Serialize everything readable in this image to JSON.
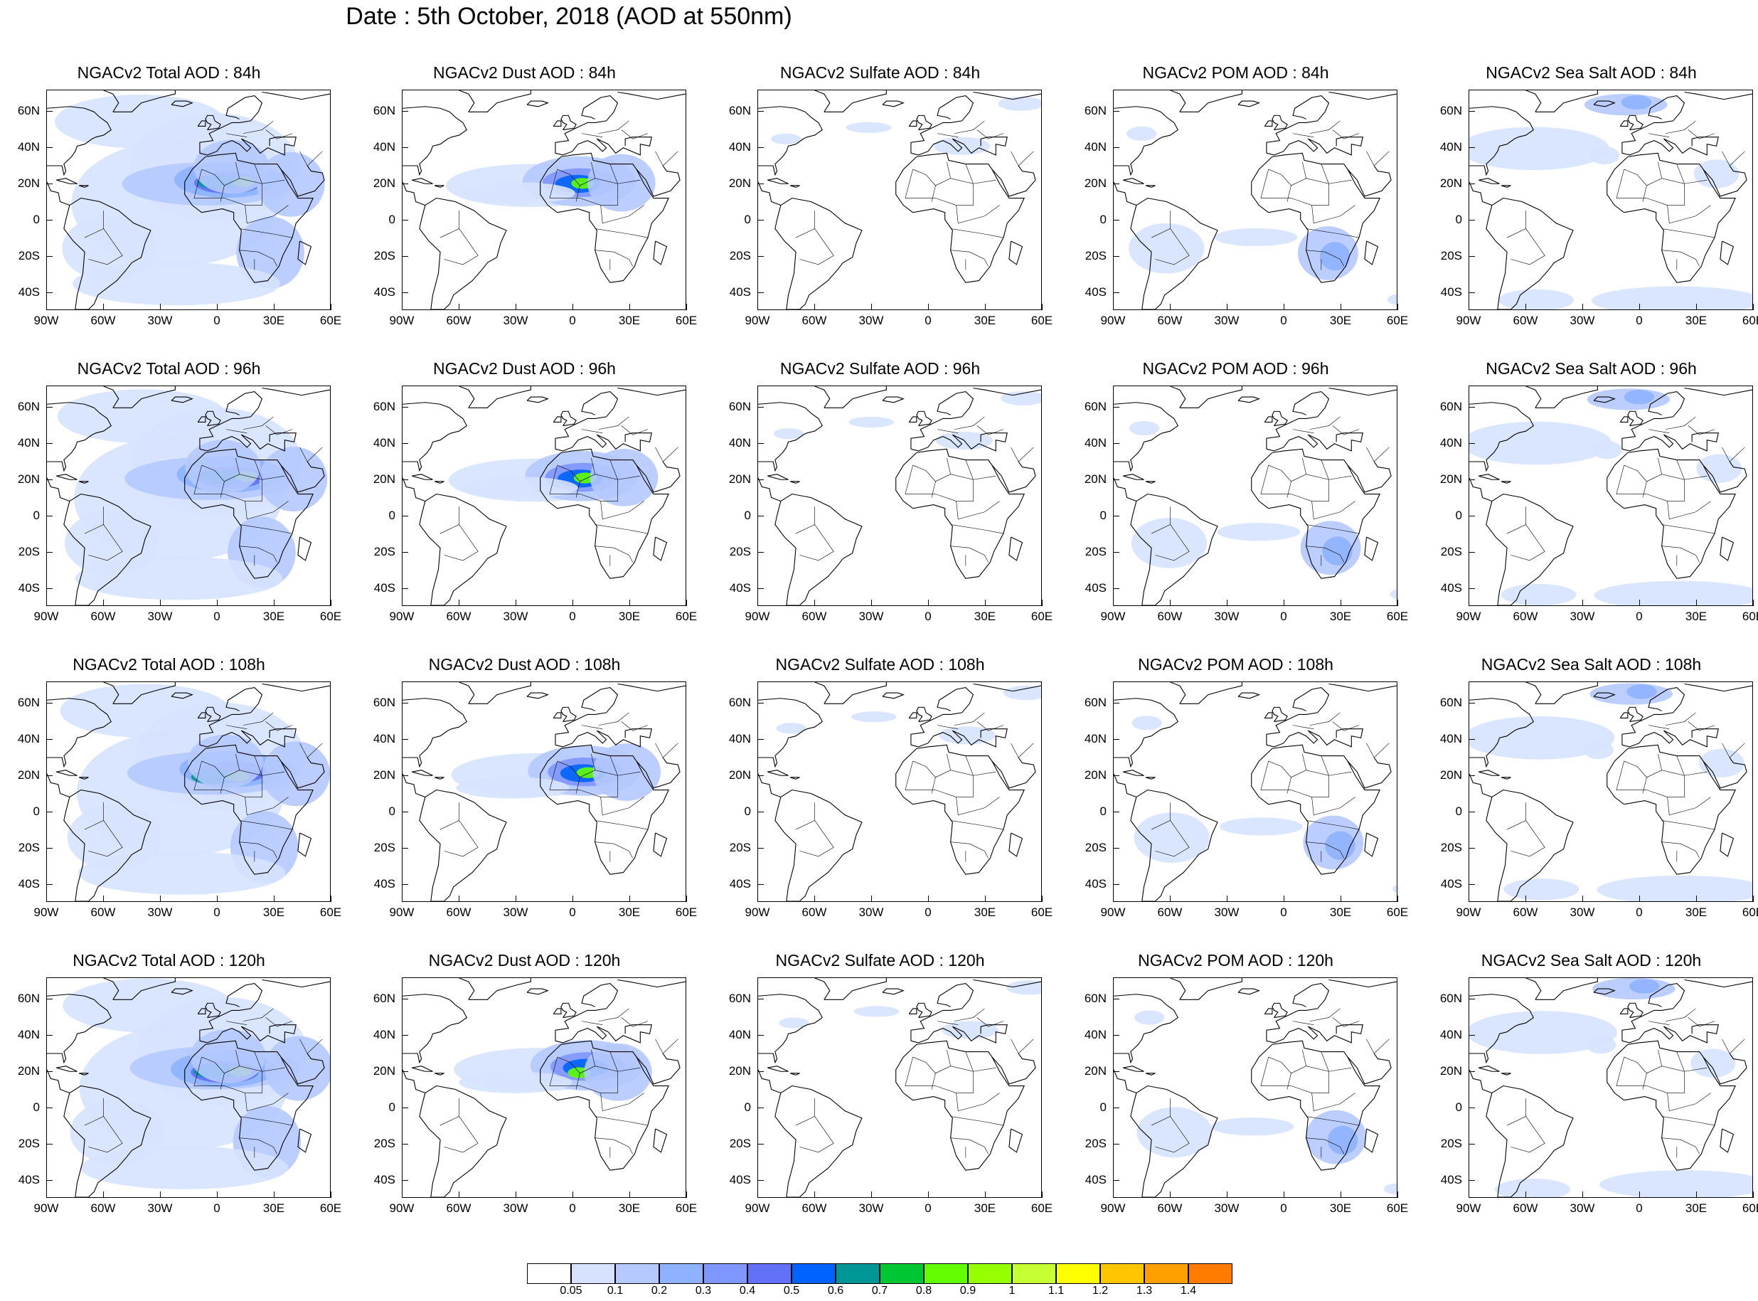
{
  "title": "Date : 5th October, 2018 (AOD at 550nm)",
  "lat_ticks": [
    "60N",
    "40N",
    "20N",
    "0",
    "20S",
    "40S"
  ],
  "lon_ticks": [
    "90W",
    "60W",
    "30W",
    "0",
    "30E",
    "60E"
  ],
  "panels": [
    [
      "NGACv2 Total AOD : 84h",
      "NGACv2 Dust AOD : 84h",
      "NGACv2 Sulfate AOD : 84h",
      "NGACv2 POM AOD : 84h",
      "NGACv2 Sea Salt AOD : 84h"
    ],
    [
      "NGACv2 Total AOD : 96h",
      "NGACv2 Dust AOD : 96h",
      "NGACv2 Sulfate AOD : 96h",
      "NGACv2 POM AOD : 96h",
      "NGACv2 Sea Salt AOD : 96h"
    ],
    [
      "NGACv2 Total AOD : 108h",
      "NGACv2 Dust AOD : 108h",
      "NGACv2 Sulfate AOD : 108h",
      "NGACv2 POM AOD : 108h",
      "NGACv2 Sea Salt AOD : 108h"
    ],
    [
      "NGACv2 Total AOD : 120h",
      "NGACv2 Dust AOD : 120h",
      "NGACv2 Sulfate AOD : 120h",
      "NGACv2 POM AOD : 120h",
      "NGACv2 Sea Salt  AOD : 120h"
    ]
  ],
  "colorbar": {
    "labels": [
      "0.05",
      "0.1",
      "0.2",
      "0.3",
      "0.4",
      "0.5",
      "0.6",
      "0.7",
      "0.8",
      "0.9",
      "1",
      "1.1",
      "1.2",
      "1.3",
      "1.4"
    ],
    "colors": [
      "#ffffff",
      "#d6e2ff",
      "#b5c9ff",
      "#8eb2ff",
      "#7f96ff",
      "#6370f8",
      "#0063ff",
      "#009696",
      "#00c633",
      "#63ff00",
      "#96ff00",
      "#c6ff33",
      "#ffff00",
      "#ffc600",
      "#ffa000",
      "#ff7c00",
      "#ff1900"
    ]
  }
}
